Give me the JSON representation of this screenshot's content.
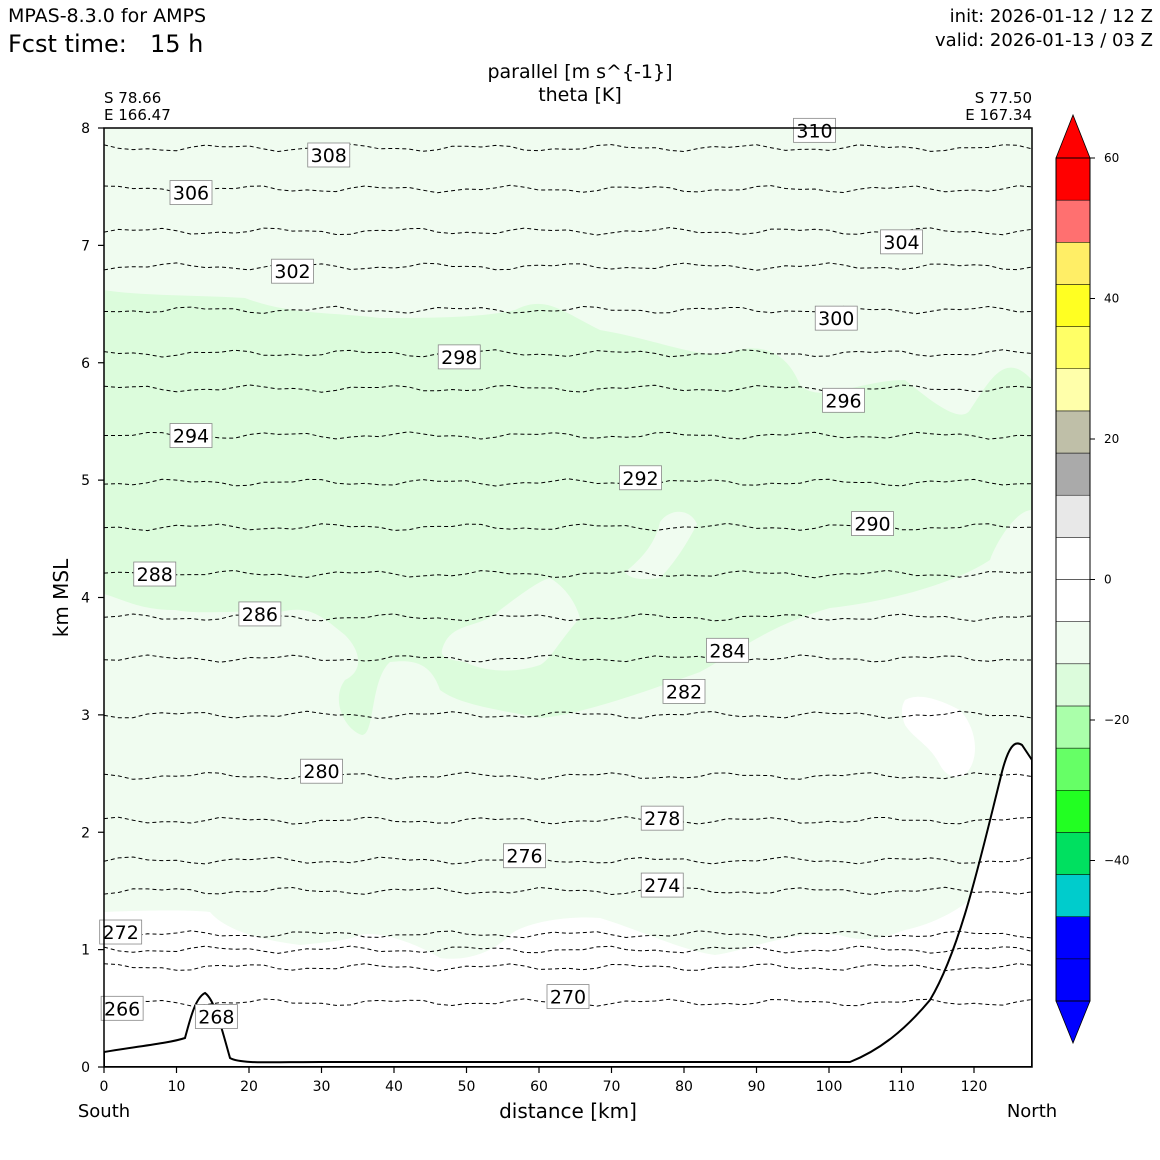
{
  "header": {
    "model": "MPAS-8.3.0 for AMPS",
    "fcst_label": "Fcst time:",
    "fcst_value": "15 h",
    "init": "init: 2026-01-12 / 12 Z",
    "valid": "valid: 2026-01-13 / 03 Z"
  },
  "chart_data": {
    "type": "cross-section",
    "title": "parallel [m s^{-1}]",
    "subtitle": "theta [K]",
    "xlabel": "distance [km]",
    "ylabel": "km MSL",
    "xlim": [
      0,
      128
    ],
    "ylim": [
      0,
      8
    ],
    "xticks": [
      "0",
      "10",
      "20",
      "30",
      "40",
      "50",
      "60",
      "70",
      "80",
      "90",
      "100",
      "110",
      "120"
    ],
    "yticks": [
      "0",
      "1",
      "2",
      "3",
      "4",
      "5",
      "6",
      "7",
      "8"
    ],
    "endpoints": {
      "left": {
        "lat": "S 78.66",
        "lon": "E 166.47",
        "dir": "South"
      },
      "right": {
        "lat": "S 77.50",
        "lon": "E 167.34",
        "dir": "North"
      }
    },
    "colorbar": {
      "ticks": [
        "60",
        "40",
        "20",
        "0",
        "−20",
        "−40"
      ],
      "colors": [
        "#0000ff",
        "#0000ff",
        "#00cccc",
        "#00e060",
        "#22ff22",
        "#66ff66",
        "#aaffaa",
        "#dcfcdc",
        "#f0fcf0",
        "#ffffff",
        "#ffffff",
        "#e8e8e8",
        "#aaaaaa",
        "#bfbfa8",
        "#ffffaa",
        "#ffff66",
        "#ffff22",
        "#ffee66",
        "#ff7070",
        "#ff0000"
      ]
    },
    "theta_isolines": [
      {
        "level": 266,
        "y": 0.55,
        "label": "266",
        "lx": 2.5,
        "ly": 0.5
      },
      {
        "level": 268,
        "y": 0.85,
        "label": "268",
        "lx": 15.5,
        "ly": 0.43
      },
      {
        "level": 270,
        "y": 1.0,
        "label": "270",
        "lx": 64,
        "ly": 0.6
      },
      {
        "level": 272,
        "y": 1.13,
        "label": "272",
        "lx": 2.3,
        "ly": 1.15
      },
      {
        "level": 274,
        "y": 1.5,
        "label": "274",
        "lx": 77,
        "ly": 1.55
      },
      {
        "level": 276,
        "y": 1.76,
        "label": "276",
        "lx": 58,
        "ly": 1.8
      },
      {
        "level": 278,
        "y": 2.1,
        "label": "278",
        "lx": 77,
        "ly": 2.12
      },
      {
        "level": 280,
        "y": 2.48,
        "label": "280",
        "lx": 30,
        "ly": 2.52
      },
      {
        "level": 282,
        "y": 3.0,
        "label": "282",
        "lx": 80,
        "ly": 3.2
      },
      {
        "level": 284,
        "y": 3.48,
        "label": "284",
        "lx": 86,
        "ly": 3.55
      },
      {
        "level": 286,
        "y": 3.83,
        "label": "286",
        "lx": 21.5,
        "ly": 3.86
      },
      {
        "level": 288,
        "y": 4.2,
        "label": "288",
        "lx": 7,
        "ly": 4.2
      },
      {
        "level": 290,
        "y": 4.6,
        "label": "290",
        "lx": 106,
        "ly": 4.63
      },
      {
        "level": 292,
        "y": 4.98,
        "label": "292",
        "lx": 74,
        "ly": 5.02
      },
      {
        "level": 294,
        "y": 5.38,
        "label": "294",
        "lx": 12,
        "ly": 5.38
      },
      {
        "level": 296,
        "y": 5.78,
        "label": "296",
        "lx": 102,
        "ly": 5.68
      },
      {
        "level": 298,
        "y": 6.08,
        "label": "298",
        "lx": 49,
        "ly": 6.05
      },
      {
        "level": 300,
        "y": 6.45,
        "label": "300",
        "lx": 101,
        "ly": 6.38
      },
      {
        "level": 302,
        "y": 6.82,
        "label": "302",
        "lx": 26,
        "ly": 6.78
      },
      {
        "level": 304,
        "y": 7.12,
        "label": "304",
        "lx": 110,
        "ly": 7.03
      },
      {
        "level": 306,
        "y": 7.48,
        "label": "306",
        "lx": 12,
        "ly": 7.45
      },
      {
        "level": 308,
        "y": 7.83,
        "label": "308",
        "lx": 31,
        "ly": 7.77
      },
      {
        "level": 310,
        "y": 8.08,
        "label": "310",
        "lx": 98,
        "ly": 7.98
      }
    ]
  }
}
